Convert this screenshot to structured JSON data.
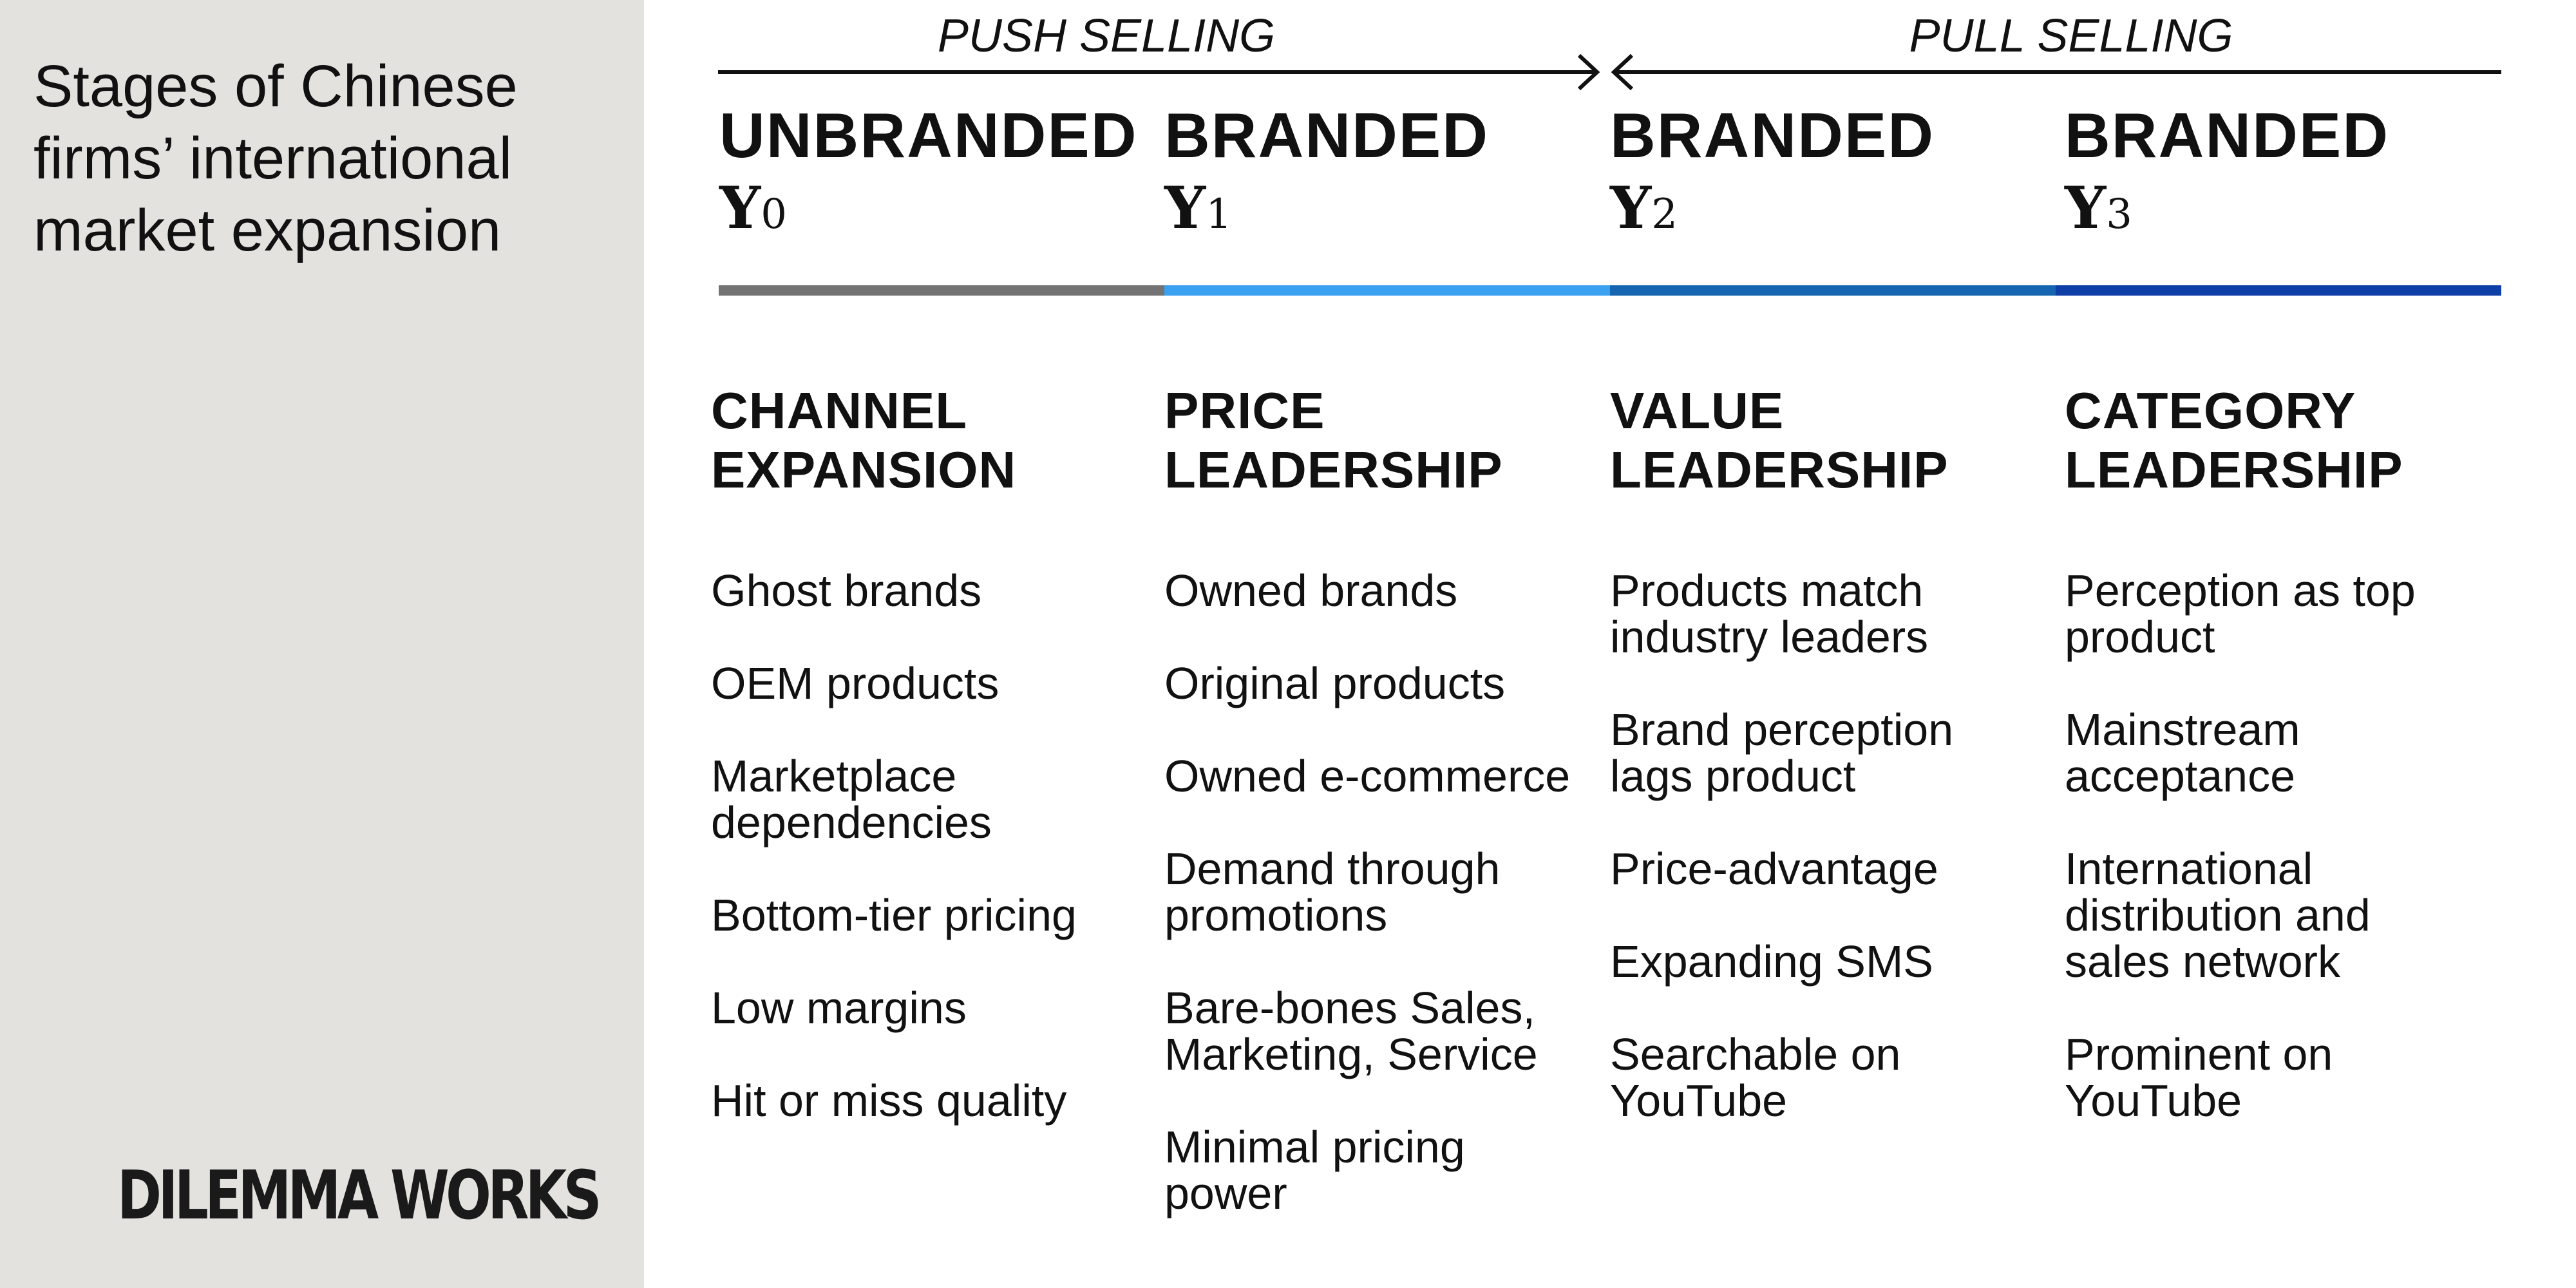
{
  "sidebar": {
    "title": "Stages of Chinese\nfirms’ international\nmarket expansion",
    "logo_text": "DILEMMA WORKS"
  },
  "header": {
    "push_label": "PUSH SELLING",
    "pull_label": "PULL SELLING"
  },
  "stages": [
    {
      "name": "UNBRANDED",
      "year_letter": "Y",
      "year_index": "0",
      "bar_color": "#737373"
    },
    {
      "name": "BRANDED",
      "year_letter": "Y",
      "year_index": "1",
      "bar_color": "#3aa0f0"
    },
    {
      "name": "BRANDED",
      "year_letter": "Y",
      "year_index": "2",
      "bar_color": "#1565b0"
    },
    {
      "name": "BRANDED",
      "year_letter": "Y",
      "year_index": "3",
      "bar_color": "#0d3fa6"
    }
  ],
  "columns": [
    {
      "heading": "CHANNEL\nEXPANSION",
      "items": [
        "Ghost brands",
        "OEM products",
        "Marketplace\ndependencies",
        "Bottom-tier pricing",
        "Low margins",
        "Hit or miss quality"
      ]
    },
    {
      "heading": "PRICE\nLEADERSHIP",
      "items": [
        "Owned brands",
        "Original products",
        "Owned e-commerce",
        "Demand through\npromotions",
        "Bare-bones Sales,\nMarketing, Service",
        "Minimal pricing\npower"
      ]
    },
    {
      "heading": "VALUE\nLEADERSHIP",
      "items": [
        "Products match\nindustry leaders",
        "Brand perception\nlags product",
        "Price-advantage",
        "Expanding SMS",
        "Searchable on\nYouTube"
      ]
    },
    {
      "heading": "CATEGORY\nLEADERSHIP",
      "items": [
        "Perception as top\nproduct",
        "Mainstream\nacceptance",
        "International\ndistribution and\nsales network",
        "Prominent on\nYouTube"
      ]
    }
  ]
}
